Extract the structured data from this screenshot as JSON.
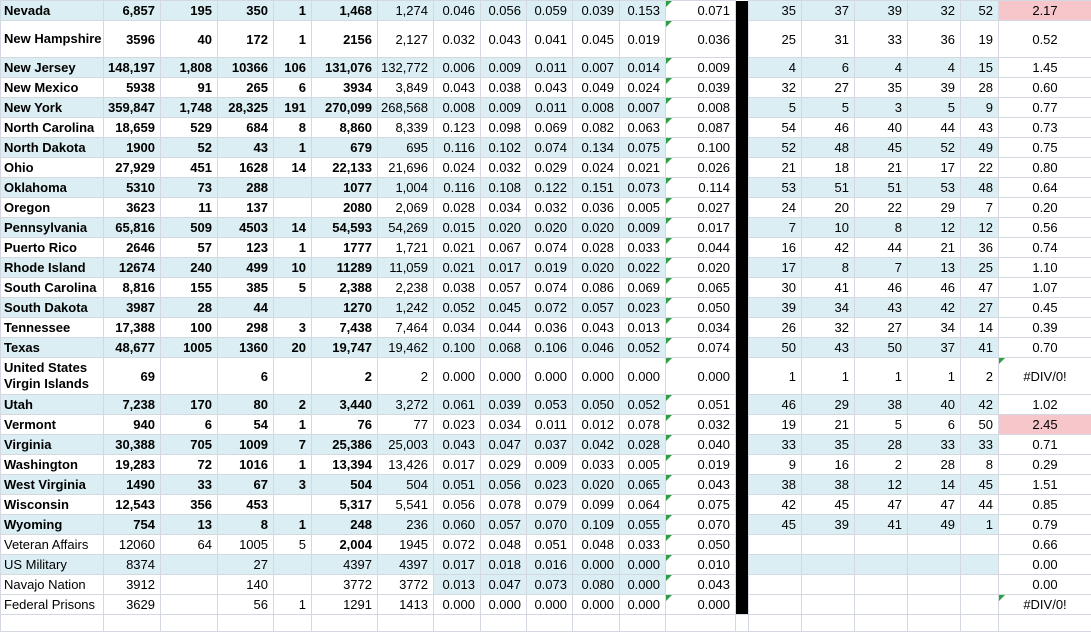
{
  "app": {
    "kind": "spreadsheet-grid"
  },
  "colors": {
    "band_blue": "#daeef3",
    "highlight_pink": "#f6c6cb",
    "gridline": "#d4d9e1",
    "section_divider": "#000000",
    "formula_warning_green": "#2f9e44",
    "text": "#000000"
  },
  "table": {
    "rows": [
      {
        "name": "Nevada",
        "band": true,
        "bold_name": true,
        "bold15": true,
        "ratio_pink": true,
        "cells": [
          "6,857",
          "195",
          "350",
          "1",
          "1,468",
          "1,274",
          "0.046",
          "0.056",
          "0.059",
          "0.039",
          "0.153",
          "0.071",
          "35",
          "37",
          "39",
          "32",
          "52",
          "2.17"
        ]
      },
      {
        "name": "New Hampshire",
        "tall": true,
        "bold_name": true,
        "bold15": true,
        "cells": [
          "3596",
          "40",
          "172",
          "1",
          "2156",
          "2,127",
          "0.032",
          "0.043",
          "0.041",
          "0.045",
          "0.019",
          "0.036",
          "25",
          "31",
          "33",
          "36",
          "19",
          "0.52"
        ]
      },
      {
        "name": "New Jersey",
        "band": true,
        "bold_name": true,
        "bold15": true,
        "cells": [
          "148,197",
          "1,808",
          "10366",
          "106",
          "131,076",
          "132,772",
          "0.006",
          "0.009",
          "0.011",
          "0.007",
          "0.014",
          "0.009",
          "4",
          "6",
          "4",
          "4",
          "15",
          "1.45"
        ]
      },
      {
        "name": "New Mexico",
        "bold_name": true,
        "bold15": true,
        "cells": [
          "5938",
          "91",
          "265",
          "6",
          "3934",
          "3,849",
          "0.043",
          "0.038",
          "0.043",
          "0.049",
          "0.024",
          "0.039",
          "32",
          "27",
          "35",
          "39",
          "28",
          "0.60"
        ]
      },
      {
        "name": "New York",
        "band": true,
        "bold_name": true,
        "bold15": true,
        "cells": [
          "359,847",
          "1,748",
          "28,325",
          "191",
          "270,099",
          "268,568",
          "0.008",
          "0.009",
          "0.011",
          "0.008",
          "0.007",
          "0.008",
          "5",
          "5",
          "3",
          "5",
          "9",
          "0.77"
        ]
      },
      {
        "name": "North Carolina",
        "bold_name": true,
        "bold15": true,
        "cells": [
          "18,659",
          "529",
          "684",
          "8",
          "8,860",
          "8,339",
          "0.123",
          "0.098",
          "0.069",
          "0.082",
          "0.063",
          "0.087",
          "54",
          "46",
          "40",
          "44",
          "43",
          "0.73"
        ]
      },
      {
        "name": "North Dakota",
        "band": true,
        "bold_name": true,
        "bold15": true,
        "cells": [
          "1900",
          "52",
          "43",
          "1",
          "679",
          "695",
          "0.116",
          "0.102",
          "0.074",
          "0.134",
          "0.075",
          "0.100",
          "52",
          "48",
          "45",
          "52",
          "49",
          "0.75"
        ]
      },
      {
        "name": "Ohio",
        "bold_name": true,
        "bold15": true,
        "cells": [
          "27,929",
          "451",
          "1628",
          "14",
          "22,133",
          "21,696",
          "0.024",
          "0.032",
          "0.029",
          "0.024",
          "0.021",
          "0.026",
          "21",
          "18",
          "21",
          "17",
          "22",
          "0.80"
        ]
      },
      {
        "name": "Oklahoma",
        "band": true,
        "bold_name": true,
        "bold15": true,
        "cells": [
          "5310",
          "73",
          "288",
          "",
          "1077",
          "1,004",
          "0.116",
          "0.108",
          "0.122",
          "0.151",
          "0.073",
          "0.114",
          "53",
          "51",
          "51",
          "53",
          "48",
          "0.64"
        ]
      },
      {
        "name": "Oregon",
        "bold_name": true,
        "bold15": true,
        "cells": [
          "3623",
          "11",
          "137",
          "",
          "2080",
          "2,069",
          "0.028",
          "0.034",
          "0.032",
          "0.036",
          "0.005",
          "0.027",
          "24",
          "20",
          "22",
          "29",
          "7",
          "0.20"
        ]
      },
      {
        "name": "Pennsylvania",
        "band": true,
        "bold_name": true,
        "bold15": true,
        "cells": [
          "65,816",
          "509",
          "4503",
          "14",
          "54,593",
          "54,269",
          "0.015",
          "0.020",
          "0.020",
          "0.020",
          "0.009",
          "0.017",
          "7",
          "10",
          "8",
          "12",
          "12",
          "0.56"
        ]
      },
      {
        "name": "Puerto Rico",
        "bold_name": true,
        "bold15": true,
        "cells": [
          "2646",
          "57",
          "123",
          "1",
          "1777",
          "1,721",
          "0.021",
          "0.067",
          "0.074",
          "0.028",
          "0.033",
          "0.044",
          "16",
          "42",
          "44",
          "21",
          "36",
          "0.74"
        ]
      },
      {
        "name": "Rhode Island",
        "band": true,
        "bold_name": true,
        "bold15": true,
        "cells": [
          "12674",
          "240",
          "499",
          "10",
          "11289",
          "11,059",
          "0.021",
          "0.017",
          "0.019",
          "0.020",
          "0.022",
          "0.020",
          "17",
          "8",
          "7",
          "13",
          "25",
          "1.10"
        ]
      },
      {
        "name": "South Carolina",
        "bold_name": true,
        "bold15": true,
        "cells": [
          "8,816",
          "155",
          "385",
          "5",
          "2,388",
          "2,238",
          "0.038",
          "0.057",
          "0.074",
          "0.086",
          "0.069",
          "0.065",
          "30",
          "41",
          "46",
          "46",
          "47",
          "1.07"
        ]
      },
      {
        "name": "South Dakota",
        "band": true,
        "bold_name": true,
        "bold15": true,
        "cells": [
          "3987",
          "28",
          "44",
          "",
          "1270",
          "1,242",
          "0.052",
          "0.045",
          "0.072",
          "0.057",
          "0.023",
          "0.050",
          "39",
          "34",
          "43",
          "42",
          "27",
          "0.45"
        ]
      },
      {
        "name": "Tennessee",
        "bold_name": true,
        "bold15": true,
        "cells": [
          "17,388",
          "100",
          "298",
          "3",
          "7,438",
          "7,464",
          "0.034",
          "0.044",
          "0.036",
          "0.043",
          "0.013",
          "0.034",
          "26",
          "32",
          "27",
          "34",
          "14",
          "0.39"
        ]
      },
      {
        "name": "Texas",
        "band": true,
        "bold_name": true,
        "bold15": true,
        "cells": [
          "48,677",
          "1005",
          "1360",
          "20",
          "19,747",
          "19,462",
          "0.100",
          "0.068",
          "0.106",
          "0.046",
          "0.052",
          "0.074",
          "50",
          "43",
          "50",
          "37",
          "41",
          "0.70"
        ]
      },
      {
        "name": "United States Virgin Islands",
        "tall": true,
        "bold_name": true,
        "bold15": true,
        "ratio_tri": true,
        "cells": [
          "69",
          "",
          "6",
          "",
          "2",
          "2",
          "0.000",
          "0.000",
          "0.000",
          "0.000",
          "0.000",
          "0.000",
          "1",
          "1",
          "1",
          "1",
          "2",
          "#DIV/0!"
        ]
      },
      {
        "name": "Utah",
        "band": true,
        "bold_name": true,
        "bold15": true,
        "cells": [
          "7,238",
          "170",
          "80",
          "2",
          "3,440",
          "3,272",
          "0.061",
          "0.039",
          "0.053",
          "0.050",
          "0.052",
          "0.051",
          "46",
          "29",
          "38",
          "40",
          "42",
          "1.02"
        ]
      },
      {
        "name": "Vermont",
        "bold_name": true,
        "bold15": true,
        "ratio_pink": true,
        "cells": [
          "940",
          "6",
          "54",
          "1",
          "76",
          "77",
          "0.023",
          "0.034",
          "0.011",
          "0.012",
          "0.078",
          "0.032",
          "19",
          "21",
          "5",
          "6",
          "50",
          "2.45"
        ]
      },
      {
        "name": "Virginia",
        "band": true,
        "bold_name": true,
        "bold15": true,
        "cells": [
          "30,388",
          "705",
          "1009",
          "7",
          "25,386",
          "25,003",
          "0.043",
          "0.047",
          "0.037",
          "0.042",
          "0.028",
          "0.040",
          "33",
          "35",
          "28",
          "33",
          "33",
          "0.71"
        ]
      },
      {
        "name": "Washington",
        "bold_name": true,
        "bold15": true,
        "cells": [
          "19,283",
          "72",
          "1016",
          "1",
          "13,394",
          "13,426",
          "0.017",
          "0.029",
          "0.009",
          "0.033",
          "0.005",
          "0.019",
          "9",
          "16",
          "2",
          "28",
          "8",
          "0.29"
        ]
      },
      {
        "name": "West Virginia",
        "band": true,
        "bold_name": true,
        "bold15": true,
        "cells": [
          "1490",
          "33",
          "67",
          "3",
          "504",
          "504",
          "0.051",
          "0.056",
          "0.023",
          "0.020",
          "0.065",
          "0.043",
          "38",
          "38",
          "12",
          "14",
          "45",
          "1.51"
        ]
      },
      {
        "name": "Wisconsin",
        "bold_name": true,
        "bold15": true,
        "cells": [
          "12,543",
          "356",
          "453",
          "",
          "5,317",
          "5,541",
          "0.056",
          "0.078",
          "0.079",
          "0.099",
          "0.064",
          "0.075",
          "42",
          "45",
          "47",
          "47",
          "44",
          "0.85"
        ]
      },
      {
        "name": "Wyoming",
        "band": true,
        "bold_name": true,
        "bold15": true,
        "cells": [
          "754",
          "13",
          "8",
          "1",
          "248",
          "236",
          "0.060",
          "0.057",
          "0.070",
          "0.109",
          "0.055",
          "0.070",
          "45",
          "39",
          "41",
          "49",
          "1",
          "0.79"
        ]
      },
      {
        "name": "Veteran Affairs",
        "bold_cells": [
          4
        ],
        "cells": [
          "12060",
          "64",
          "1005",
          "5",
          "2,004",
          "1945",
          "0.072",
          "0.048",
          "0.051",
          "0.048",
          "0.033",
          "0.050",
          "",
          "",
          "",
          "",
          "",
          "0.66"
        ]
      },
      {
        "name": "US Military",
        "band": true,
        "cells": [
          "8374",
          "",
          "27",
          "",
          "4397",
          "4397",
          "0.017",
          "0.018",
          "0.016",
          "0.000",
          "0.000",
          "0.010",
          "",
          "",
          "",
          "",
          "",
          "0.00"
        ]
      },
      {
        "name": "Navajo Nation",
        "partial_band": [
          6,
          7,
          8,
          9,
          10
        ],
        "cells": [
          "3912",
          "",
          "140",
          "",
          "3772",
          "3772",
          "0.013",
          "0.047",
          "0.073",
          "0.080",
          "0.000",
          "0.043",
          "",
          "",
          "",
          "",
          "",
          "0.00"
        ]
      },
      {
        "name": "Federal Prisons",
        "ratio_tri": true,
        "cells": [
          "3629",
          "",
          "56",
          "1",
          "1291",
          "1413",
          "0.000",
          "0.000",
          "0.000",
          "0.000",
          "0.000",
          "0.000",
          "",
          "",
          "",
          "",
          "",
          "#DIV/0!"
        ]
      }
    ]
  }
}
